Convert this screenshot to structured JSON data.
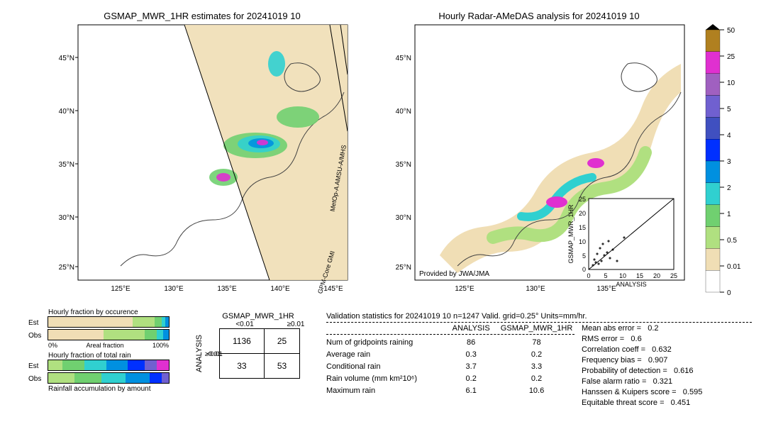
{
  "titles": {
    "left_map": "GSMAP_MWR_1HR estimates for 20241019 10",
    "right_map": "Hourly Radar-AMeDAS analysis for 20241019 10",
    "provided_by": "Provided by JWA/JMA"
  },
  "colorbar": {
    "ticks": [
      "50",
      "25",
      "10",
      "5",
      "4",
      "3",
      "2",
      "1",
      "0.5",
      "0.01",
      "0"
    ],
    "colors": [
      "#000000",
      "#b08020",
      "#e030d0",
      "#a060c0",
      "#7060d0",
      "#4050c0",
      "#0030ff",
      "#0090e0",
      "#30d0d0",
      "#70d070",
      "#b0e080",
      "#f0deb5",
      "#ffffff"
    ]
  },
  "map_axes": {
    "y_ticks": [
      "45°N",
      "40°N",
      "35°N",
      "30°N",
      "25°N"
    ],
    "x_ticks_left": [
      "125°E",
      "130°E",
      "135°E",
      "140°E",
      "145°E"
    ],
    "x_ticks_right": [
      "125°E",
      "130°E",
      "135°E"
    ],
    "background": "#ffffff",
    "land_fill": "none",
    "coast_stroke": "#404040"
  },
  "swaths": {
    "metopa_label": "MetOp-A AMSU-A/MHS",
    "gpm_label": "GPM-Core GMI"
  },
  "scatter_inset": {
    "xlabel": "ANALYSIS",
    "ylabel": "GSMAP_MWR_1HR",
    "ticks": [
      "0",
      "5",
      "10",
      "15",
      "20",
      "25"
    ],
    "xlim": [
      0,
      25
    ],
    "ylim": [
      0,
      25
    ]
  },
  "fractions": {
    "occur_title": "Hourly fraction by occurence",
    "total_title": "Hourly fraction of total rain",
    "accum_title": "Rainfall accumulation by amount",
    "est_label": "Est",
    "obs_label": "Obs",
    "axis_left": "0%",
    "axis_mid": "Areal fraction",
    "axis_right": "100%",
    "occur_est_segments": [
      {
        "w": 70,
        "c": "#f0deb5"
      },
      {
        "w": 18,
        "c": "#b0e080"
      },
      {
        "w": 6,
        "c": "#70d070"
      },
      {
        "w": 3,
        "c": "#30d0d0"
      },
      {
        "w": 3,
        "c": "#0090e0"
      }
    ],
    "occur_obs_segments": [
      {
        "w": 46,
        "c": "#f0deb5"
      },
      {
        "w": 34,
        "c": "#b0e080"
      },
      {
        "w": 10,
        "c": "#70d070"
      },
      {
        "w": 5,
        "c": "#30d0d0"
      },
      {
        "w": 5,
        "c": "#0090e0"
      }
    ],
    "total_est_segments": [
      {
        "w": 12,
        "c": "#b0e080"
      },
      {
        "w": 18,
        "c": "#70d070"
      },
      {
        "w": 18,
        "c": "#30d0d0"
      },
      {
        "w": 18,
        "c": "#0090e0"
      },
      {
        "w": 14,
        "c": "#0030ff"
      },
      {
        "w": 10,
        "c": "#7060d0"
      },
      {
        "w": 10,
        "c": "#e030d0"
      }
    ],
    "total_obs_segments": [
      {
        "w": 22,
        "c": "#b0e080"
      },
      {
        "w": 22,
        "c": "#70d070"
      },
      {
        "w": 20,
        "c": "#30d0d0"
      },
      {
        "w": 20,
        "c": "#0090e0"
      },
      {
        "w": 10,
        "c": "#0030ff"
      },
      {
        "w": 6,
        "c": "#7060d0"
      }
    ]
  },
  "contingency": {
    "col_header": "GSMAP_MWR_1HR",
    "row_header": "ANALYSIS",
    "thresh_lt": "<0.01",
    "thresh_ge": "≥0.01",
    "cells": [
      [
        "1136",
        "25"
      ],
      [
        "33",
        "53"
      ]
    ]
  },
  "validation": {
    "title": "Validation statistics for 20241019 10  n=1247 Valid. grid=0.25°  Units=mm/hr.",
    "col_analysis": "ANALYSIS",
    "col_gsmap": "GSMAP_MWR_1HR",
    "rows": [
      {
        "k": "Num of gridpoints raining",
        "a": "86",
        "g": "78"
      },
      {
        "k": "Average rain",
        "a": "0.3",
        "g": "0.2"
      },
      {
        "k": "Conditional rain",
        "a": "3.7",
        "g": "3.3"
      },
      {
        "k": "Rain volume (mm km²10⁶)",
        "a": "0.2",
        "g": "0.2"
      },
      {
        "k": "Maximum rain",
        "a": "6.1",
        "g": "10.6"
      }
    ],
    "stats": [
      {
        "k": "Mean abs error =",
        "v": "0.2"
      },
      {
        "k": "RMS error =",
        "v": "0.6"
      },
      {
        "k": "Correlation coeff =",
        "v": "0.632"
      },
      {
        "k": "Frequency bias =",
        "v": "0.907"
      },
      {
        "k": "Probability of detection =",
        "v": "0.616"
      },
      {
        "k": "False alarm ratio =",
        "v": "0.321"
      },
      {
        "k": "Hanssen & Kuipers score =",
        "v": "0.595"
      },
      {
        "k": "Equitable threat score =",
        "v": "0.451"
      }
    ]
  }
}
